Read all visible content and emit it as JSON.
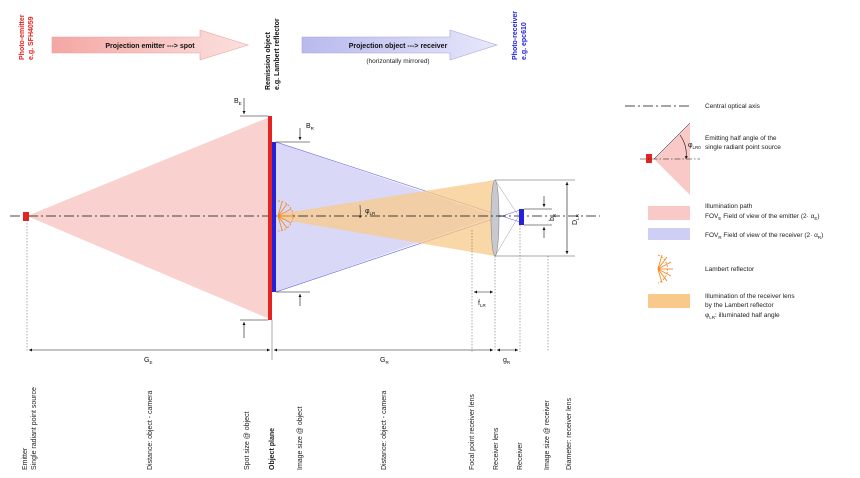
{
  "header": {
    "photo_emitter_title": "Photo-emitter",
    "photo_emitter_example": "e.g. SFH4059",
    "remission_title": "Remission object",
    "remission_example": "e.g. Lambert reflector",
    "photo_receiver_title": "Photo-receiver",
    "photo_receiver_example": "e.g. epc610",
    "arrow_emitter_spot": "Projection emitter ---> spot",
    "arrow_object_receiver": "Projection object ---> receiver",
    "arrow_object_receiver_note": "(horizontally mirrored)"
  },
  "dimensions": {
    "B": "B",
    "B_sub": "E",
    "BR": "B",
    "BR_sub": "R",
    "phi": "φ",
    "phi_sub": "LR",
    "bR": "b",
    "bR_sub": "R",
    "DLR": "D",
    "DLR_sub": "LR",
    "fLR": "f",
    "fLR_sub": "LR",
    "GE": "G",
    "GE_sub": "E",
    "GR": "G",
    "GR_sub": "R",
    "gR": "g",
    "gR_sub": "R"
  },
  "legend": {
    "axis_label": "Central optical axis",
    "half_angle_line1": "Emitting half angle of the",
    "half_angle_line2": "single radiant point source",
    "half_angle_symbol": "φ",
    "half_angle_symbol_sub": "LR0",
    "illum_line1": "Illumination path",
    "illum_line2_a": "FOV",
    "illum_line2_sub": "E",
    "illum_line2_b": " Field of view of the emitter (2· α",
    "illum_line2_sub2": "E",
    "illum_line2_c": ")",
    "fovr_a": "FOV",
    "fovr_sub": "R",
    "fovr_b": " Field of view of the receiver (2· α",
    "fovr_sub2": "R",
    "fovr_c": ")",
    "lambert": "Lambert reflector",
    "recv_line1": "Illumination of the receiver lens",
    "recv_line2": "by the Lambert reflector",
    "recv_line3_a": "φ",
    "recv_line3_sub": "LR",
    "recv_line3_b": ":  illuminated half angle"
  },
  "bottom_labels": {
    "emitter_1": "Emitter",
    "emitter_2": "Single radiant point source",
    "distance_obj_cam_left": "Distance: object - camera",
    "spot_size": "Spot size @ object",
    "object_plane": "Object plane",
    "image_size_object": "Image size @ object",
    "distance_obj_cam_right": "Distance: object - camera",
    "focal_point": "Focal point receiver lens",
    "receiver_lens": "Receiver lens",
    "receiver": "Receiver",
    "image_size_receiver": "Image size @ receiver",
    "diameter_lens": "Diameter: receiver lens"
  },
  "colors": {
    "emitter_red": "#e52421",
    "receiver_blue": "#2222dd",
    "illum_pink": "#f8c9c6",
    "fov_blue": "#cfcff5",
    "recv_orange": "#f8c98a"
  }
}
